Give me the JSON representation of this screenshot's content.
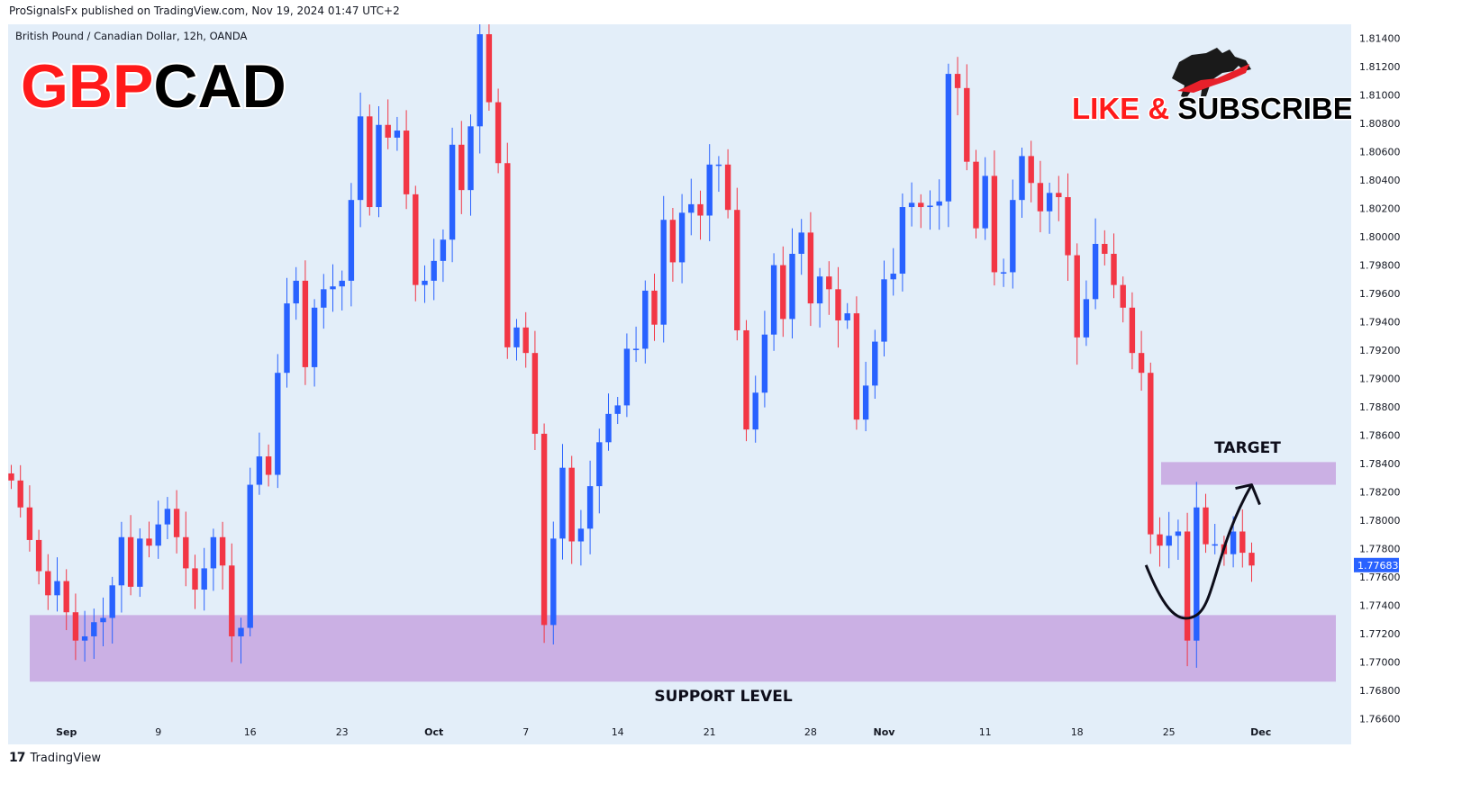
{
  "header": {
    "published": "ProSignalsFx published on TradingView.com, Nov 19, 2024 01:47 UTC+2"
  },
  "footer": {
    "brand": "TradingView",
    "logo_glyph": "17"
  },
  "price_badge": {
    "value": "1.77683",
    "color": "#2962ff"
  },
  "colors": {
    "up": "#2962ff",
    "down": "#f23645",
    "zone": "#c7a5e0",
    "background": "#e3eef9"
  },
  "chart_data": {
    "type": "candlestick",
    "symbol_line": "British Pound / Canadian Dollar, 12h, OANDA",
    "big_title": "GBPCAD",
    "big_title_parts": [
      {
        "text": "GBP",
        "color": "#ff1a1a"
      },
      {
        "text": "CAD",
        "color": "#000000"
      }
    ],
    "promo_parts": [
      {
        "text": "LIKE & ",
        "color": "#ff1a1a"
      },
      {
        "text": "SUBSCRIBE",
        "color": "#000000"
      }
    ],
    "annotations": {
      "support": "SUPPORT LEVEL",
      "target": "TARGET"
    },
    "support_zone": [
      1.7686,
      1.7733
    ],
    "target_zone": [
      1.7825,
      1.7841
    ],
    "ylim": [
      1.766,
      1.815
    ],
    "yticks": [
      "1.81400",
      "1.81200",
      "1.81000",
      "1.80800",
      "1.80600",
      "1.80400",
      "1.80200",
      "1.80000",
      "1.79800",
      "1.79600",
      "1.79400",
      "1.79200",
      "1.79000",
      "1.78800",
      "1.78600",
      "1.78400",
      "1.78200",
      "1.78000",
      "1.77800",
      "1.77600",
      "1.77400",
      "1.77200",
      "1.77000",
      "1.76800",
      "1.76600"
    ],
    "ytick_values": [
      1.814,
      1.812,
      1.81,
      1.808,
      1.806,
      1.804,
      1.802,
      1.8,
      1.798,
      1.796,
      1.794,
      1.792,
      1.79,
      1.788,
      1.786,
      1.784,
      1.782,
      1.78,
      1.778,
      1.776,
      1.774,
      1.772,
      1.77,
      1.768,
      1.766
    ],
    "xticks": [
      {
        "label": "Sep",
        "index": 6,
        "bold": true
      },
      {
        "label": "9",
        "index": 16,
        "bold": false
      },
      {
        "label": "16",
        "index": 26,
        "bold": false
      },
      {
        "label": "23",
        "index": 36,
        "bold": false
      },
      {
        "label": "Oct",
        "index": 46,
        "bold": true
      },
      {
        "label": "7",
        "index": 56,
        "bold": false
      },
      {
        "label": "14",
        "index": 66,
        "bold": false
      },
      {
        "label": "21",
        "index": 76,
        "bold": false
      },
      {
        "label": "28",
        "index": 87,
        "bold": false
      },
      {
        "label": "Nov",
        "index": 95,
        "bold": true
      },
      {
        "label": "11",
        "index": 106,
        "bold": false
      },
      {
        "label": "18",
        "index": 116,
        "bold": false
      },
      {
        "label": "25",
        "index": 126,
        "bold": false
      },
      {
        "label": "Dec",
        "index": 136,
        "bold": true
      }
    ],
    "closes": [
      1.7828,
      1.7809,
      1.7786,
      1.7764,
      1.7747,
      1.7757,
      1.7735,
      1.7715,
      1.7718,
      1.7728,
      1.7731,
      1.7754,
      1.7788,
      1.7753,
      1.7787,
      1.7782,
      1.7797,
      1.7808,
      1.7788,
      1.7766,
      1.7751,
      1.7766,
      1.7788,
      1.7768,
      1.7718,
      1.7724,
      1.7825,
      1.7845,
      1.7832,
      1.7904,
      1.7953,
      1.7969,
      1.7908,
      1.795,
      1.7963,
      1.7965,
      1.7969,
      1.8026,
      1.8085,
      1.8021,
      1.8079,
      1.807,
      1.8075,
      1.803,
      1.7966,
      1.7969,
      1.7983,
      1.7998,
      1.8065,
      1.8033,
      1.8078,
      1.8143,
      1.8095,
      1.8052,
      1.7922,
      1.7936,
      1.7918,
      1.7861,
      1.7726,
      1.7787,
      1.7837,
      1.7785,
      1.7794,
      1.7824,
      1.7855,
      1.7875,
      1.7881,
      1.7921,
      1.7921,
      1.7962,
      1.7938,
      1.8012,
      1.7982,
      1.8017,
      1.8023,
      1.8015,
      1.8051,
      1.8051,
      1.8019,
      1.7934,
      1.7864,
      1.789,
      1.7931,
      1.798,
      1.7942,
      1.7988,
      1.8003,
      1.7953,
      1.7972,
      1.7963,
      1.7941,
      1.7946,
      1.7871,
      1.7895,
      1.7926,
      1.797,
      1.7974,
      1.8021,
      1.8024,
      1.8021,
      1.8022,
      1.8025,
      1.8115,
      1.8105,
      1.8053,
      1.8006,
      1.8043,
      1.7975,
      1.7975,
      1.8026,
      1.8057,
      1.8038,
      1.8018,
      1.8031,
      1.8028,
      1.7987,
      1.7929,
      1.7956,
      1.7995,
      1.7988,
      1.7966,
      1.795,
      1.7918,
      1.7904,
      1.779,
      1.7782,
      1.7789,
      1.7792,
      1.7715,
      1.7809,
      1.7783,
      1.7783,
      1.7776,
      1.7792,
      1.7777,
      1.7768
    ],
    "last_close": 1.77683,
    "forecast_path": [
      {
        "i": 123.5,
        "y": 1.77683
      },
      {
        "i": 129,
        "y": 1.7733
      },
      {
        "i": 135,
        "y": 1.7825
      }
    ]
  }
}
